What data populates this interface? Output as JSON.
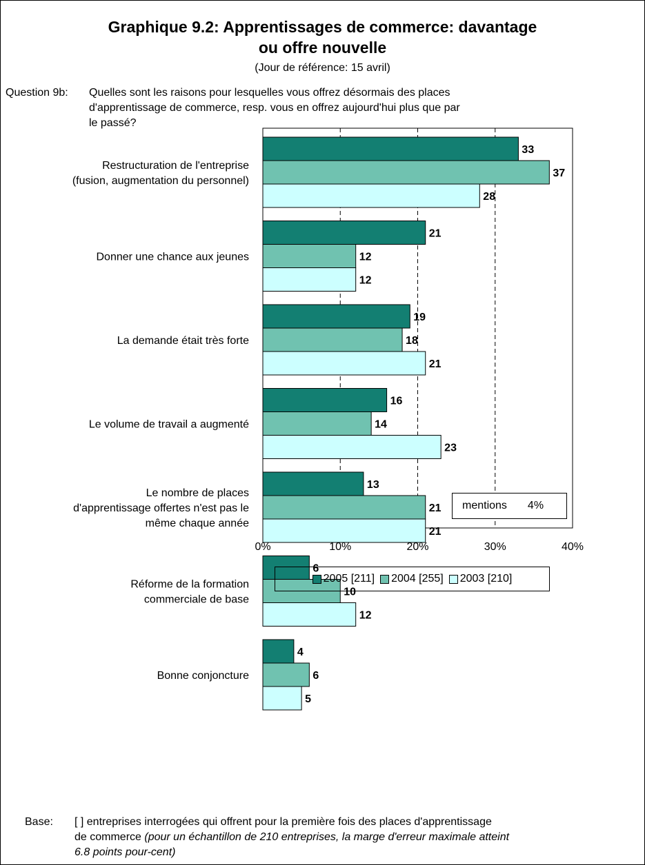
{
  "title_line1": "Graphique 9.2: Apprentissages de commerce: davantage",
  "title_line2": "ou offre nouvelle",
  "subtitle": "(Jour de référence: 15 avril)",
  "question": {
    "label": "Question 9b:",
    "lines": [
      "Quelles sont les raisons pour lesquelles vous offrez désormais des places",
      "d'apprentissage de commerce, resp. vous en offrez aujourd'hui plus que par",
      "le passé?"
    ]
  },
  "mentions": {
    "label": "mentions",
    "value": "4%"
  },
  "base": {
    "label": "Base:",
    "line1": "[ ] entreprises interrogées qui offrent pour la première fois des places d'apprentissage",
    "line2_plain": "de commerce ",
    "line2_italic": "(pour un échantillon de 210 entreprises, la marge d'erreur maximale atteint",
    "line3_italic": "6.8 points pour-cent)"
  },
  "colors": {
    "2005": "#137f72",
    "2004": "#70c2b0",
    "2003": "#ccffff"
  },
  "chart_data": {
    "type": "bar",
    "orientation": "horizontal",
    "categories": [
      [
        "Restructuration de l'entreprise",
        "(fusion, augmentation du personnel)"
      ],
      [
        "Donner une chance aux jeunes"
      ],
      [
        "La demande était très forte"
      ],
      [
        "Le volume de travail a augmenté"
      ],
      [
        "Le nombre de places",
        "d'apprentissage offertes n'est pas le",
        "même chaque année"
      ],
      [
        "Réforme de la formation",
        "commerciale de base"
      ],
      [
        "Bonne conjoncture"
      ]
    ],
    "series": [
      {
        "name": "2005 [211]",
        "key": "2005",
        "values": [
          33,
          21,
          19,
          16,
          13,
          6,
          4
        ]
      },
      {
        "name": "2004 [255]",
        "key": "2004",
        "values": [
          37,
          12,
          18,
          14,
          21,
          10,
          6
        ]
      },
      {
        "name": "2003 [210]",
        "key": "2003",
        "values": [
          28,
          12,
          21,
          23,
          21,
          12,
          5
        ]
      }
    ],
    "xlim": [
      0,
      40
    ],
    "xticks": [
      "0%",
      "10%",
      "20%",
      "30%",
      "40%"
    ],
    "grid": "dashed vertical",
    "legend": "bottom"
  }
}
